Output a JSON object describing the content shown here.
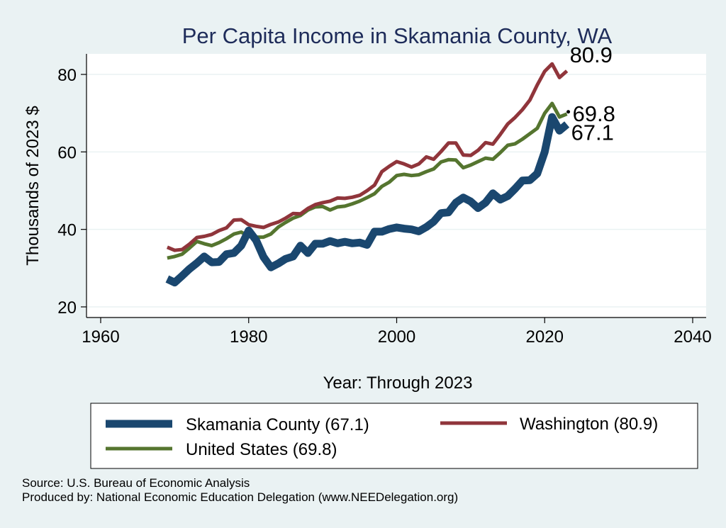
{
  "chart_data": {
    "type": "line",
    "title": "Per Capita Income in Skamania County, WA",
    "xlabel": "Year: Through 2023",
    "ylabel": "Thousands of 2023 $",
    "xlim": [
      1960,
      2040
    ],
    "ylim": [
      20,
      80
    ],
    "xticks": [
      1960,
      1980,
      2000,
      2020,
      2040
    ],
    "yticks": [
      20,
      40,
      60,
      80
    ],
    "grid": "horizontal",
    "legend_position": "bottom",
    "series": [
      {
        "name": "Skamania County (67.1)",
        "color": "#1a476f",
        "end_label": "67.1",
        "x": [
          1969,
          1970,
          1971,
          1972,
          1973,
          1974,
          1975,
          1976,
          1977,
          1978,
          1979,
          1980,
          1981,
          1982,
          1983,
          1984,
          1985,
          1986,
          1987,
          1988,
          1989,
          1990,
          1991,
          1992,
          1993,
          1994,
          1995,
          1996,
          1997,
          1998,
          1999,
          2000,
          2001,
          2002,
          2003,
          2004,
          2005,
          2006,
          2007,
          2008,
          2009,
          2010,
          2011,
          2012,
          2013,
          2014,
          2015,
          2016,
          2017,
          2018,
          2019,
          2020,
          2021,
          2022,
          2023
        ],
        "values": [
          27.2,
          26.3,
          28.0,
          29.8,
          31.3,
          33.0,
          31.5,
          31.6,
          33.6,
          33.9,
          35.8,
          39.7,
          37.2,
          32.9,
          30.2,
          31.2,
          32.4,
          33.0,
          35.8,
          33.9,
          36.3,
          36.3,
          37.0,
          36.4,
          36.8,
          36.4,
          36.6,
          36.0,
          39.4,
          39.4,
          40.1,
          40.5,
          40.2,
          40.0,
          39.5,
          40.6,
          42.0,
          44.2,
          44.4,
          46.9,
          48.2,
          47.2,
          45.5,
          46.9,
          49.3,
          47.7,
          48.6,
          50.5,
          52.6,
          52.7,
          54.4,
          60.0,
          69.0,
          65.5,
          67.1
        ]
      },
      {
        "name": "Washington (80.9)",
        "color": "#90353b",
        "end_label": "80.9",
        "x": [
          1969,
          1970,
          1971,
          1972,
          1973,
          1974,
          1975,
          1976,
          1977,
          1978,
          1979,
          1980,
          1981,
          1982,
          1983,
          1984,
          1985,
          1986,
          1987,
          1988,
          1989,
          1990,
          1991,
          1992,
          1993,
          1994,
          1995,
          1996,
          1997,
          1998,
          1999,
          2000,
          2001,
          2002,
          2003,
          2004,
          2005,
          2006,
          2007,
          2008,
          2009,
          2010,
          2011,
          2012,
          2013,
          2014,
          2015,
          2016,
          2017,
          2018,
          2019,
          2020,
          2021,
          2022,
          2023
        ],
        "values": [
          35.4,
          34.6,
          34.8,
          36.2,
          37.9,
          38.2,
          38.7,
          39.7,
          40.4,
          42.4,
          42.5,
          41.2,
          40.8,
          40.5,
          41.3,
          41.9,
          42.9,
          44.1,
          44.0,
          45.4,
          46.4,
          46.9,
          47.3,
          48.1,
          48.0,
          48.3,
          48.8,
          50.0,
          51.4,
          54.9,
          56.3,
          57.5,
          56.9,
          56.1,
          56.9,
          58.7,
          58.1,
          60.1,
          62.3,
          62.3,
          59.2,
          59.1,
          60.4,
          62.4,
          62.0,
          64.5,
          67.2,
          68.9,
          70.9,
          73.4,
          77.3,
          80.8,
          82.7,
          79.2,
          80.9
        ]
      },
      {
        "name": "United States (69.8)",
        "color": "#55752f",
        "end_label": "69.8",
        "x": [
          1969,
          1970,
          1971,
          1972,
          1973,
          1974,
          1975,
          1976,
          1977,
          1978,
          1979,
          1980,
          1981,
          1982,
          1983,
          1984,
          1985,
          1986,
          1987,
          1988,
          1989,
          1990,
          1991,
          1992,
          1993,
          1994,
          1995,
          1996,
          1997,
          1998,
          1999,
          2000,
          2001,
          2002,
          2003,
          2004,
          2005,
          2006,
          2007,
          2008,
          2009,
          2010,
          2011,
          2012,
          2013,
          2014,
          2015,
          2016,
          2017,
          2018,
          2019,
          2020,
          2021,
          2022,
          2023
        ],
        "values": [
          32.6,
          33.0,
          33.6,
          35.2,
          36.9,
          36.3,
          35.8,
          36.6,
          37.6,
          38.8,
          39.3,
          38.2,
          38.0,
          38.0,
          38.8,
          40.6,
          41.8,
          42.9,
          43.6,
          45.0,
          45.8,
          45.9,
          45.0,
          45.8,
          46.0,
          46.6,
          47.3,
          48.2,
          49.2,
          51.1,
          52.2,
          53.9,
          54.2,
          53.9,
          54.1,
          54.9,
          55.6,
          57.4,
          58.0,
          57.9,
          55.9,
          56.6,
          57.5,
          58.4,
          58.1,
          59.8,
          61.7,
          62.1,
          63.3,
          64.7,
          66.1,
          70.0,
          72.5,
          69.0,
          69.8
        ]
      }
    ]
  },
  "footer": {
    "source": "Source: U.S. Bureau of Economic Analysis",
    "produced_by": "Produced by: National Economic Education Delegation (www.NEEDelegation.org)"
  }
}
